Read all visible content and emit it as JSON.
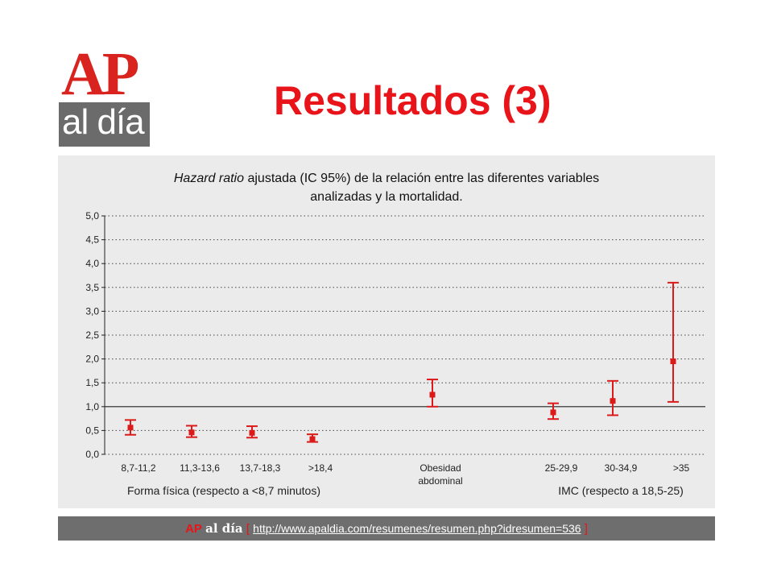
{
  "logo": {
    "ap": "AP",
    "aldia": "al día"
  },
  "slide": {
    "title": "Resultados (3)"
  },
  "chart_data": {
    "type": "errorbar",
    "title_italic": "Hazard ratio",
    "title_rest": " ajustada (IC 95%) de la relación entre las diferentes variables",
    "title_line2": "analizadas y la mortalidad.",
    "ylim": [
      0,
      5
    ],
    "yticks": [
      "0,0",
      "0,5",
      "1,0",
      "1,5",
      "2,0",
      "2,5",
      "3,0",
      "3,5",
      "4,0",
      "4,5",
      "5,0"
    ],
    "reference_line": 1.0,
    "grid": "dotted horizontal",
    "color": "#dd1a1a",
    "points": [
      {
        "label": "8,7-11,2",
        "hr": 0.56,
        "low": 0.41,
        "high": 0.72
      },
      {
        "label": "11,3-13,6",
        "hr": 0.46,
        "low": 0.36,
        "high": 0.6
      },
      {
        "label": "13,7-18,3",
        "hr": 0.45,
        "low": 0.35,
        "high": 0.59
      },
      {
        "label": ">18,4",
        "hr": 0.32,
        "low": 0.26,
        "high": 0.42
      },
      {
        "label": "Obesidad abdominal",
        "label_lines": [
          "Obesidad",
          "abdominal"
        ],
        "hr": 1.25,
        "low": 1.0,
        "high": 1.57
      },
      {
        "label": "25-29,9",
        "hr": 0.88,
        "low": 0.74,
        "high": 1.07
      },
      {
        "label": "30-34,9",
        "hr": 1.12,
        "low": 0.82,
        "high": 1.54
      },
      {
        "label": ">35",
        "hr": 1.95,
        "low": 1.1,
        "high": 3.6
      }
    ],
    "groups": [
      {
        "label": "Forma física (respecto a <8,7 minutos)"
      },
      {
        "label": "IMC (respecto a 18,5-25)"
      }
    ]
  },
  "footer": {
    "brand_ap": "AP",
    "brand_aldia": "al día",
    "bracket_open": "[",
    "url": "http://www.apaldia.com/resumenes/resumen.php?idresumen=536",
    "bracket_close": "]"
  }
}
